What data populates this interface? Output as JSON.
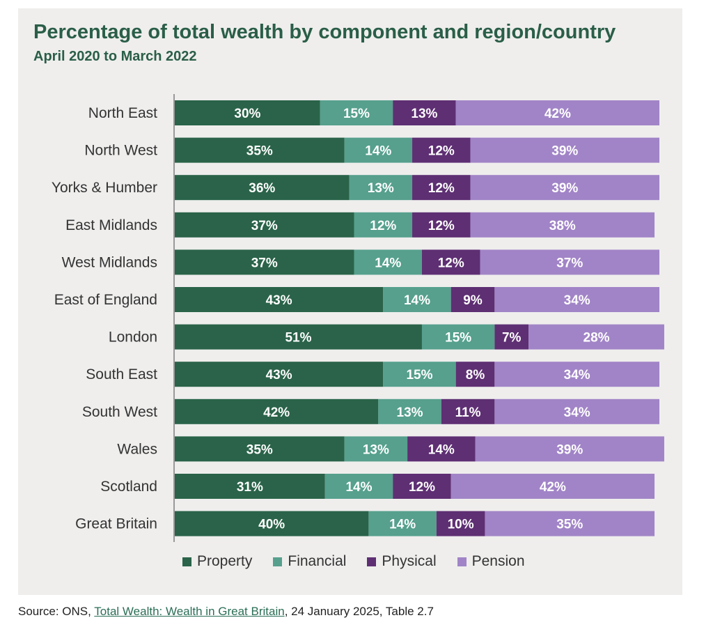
{
  "title": "Percentage of total wealth by component and region/country",
  "subtitle": "April 2020 to March 2022",
  "source": {
    "prefix": "Source:  ONS, ",
    "link_text": "Total Wealth: Wealth in Great Britain",
    "suffix": ", 24 January 2025, Table 2.7"
  },
  "colors": {
    "Property": "#2a6349",
    "Financial": "#56a08d",
    "Physical": "#5e2f73",
    "Pension": "#a184c7"
  },
  "chart_data": {
    "type": "bar",
    "orientation": "horizontal",
    "stacked": true,
    "categories": [
      "North East",
      "North West",
      "Yorks & Humber",
      "East Midlands",
      "West Midlands",
      "East of England",
      "London",
      "South East",
      "South West",
      "Wales",
      "Scotland",
      "Great Britain"
    ],
    "series": [
      {
        "name": "Property",
        "values": [
          30,
          35,
          36,
          37,
          37,
          43,
          51,
          43,
          42,
          35,
          31,
          40
        ]
      },
      {
        "name": "Financial",
        "values": [
          15,
          14,
          13,
          12,
          14,
          14,
          15,
          15,
          13,
          13,
          14,
          14
        ]
      },
      {
        "name": "Physical",
        "values": [
          13,
          12,
          12,
          12,
          12,
          9,
          7,
          8,
          11,
          14,
          12,
          10
        ]
      },
      {
        "name": "Pension",
        "values": [
          42,
          39,
          39,
          38,
          37,
          34,
          28,
          34,
          34,
          39,
          42,
          35
        ]
      }
    ],
    "value_suffix": "%",
    "legend_position": "bottom",
    "grid": false
  }
}
